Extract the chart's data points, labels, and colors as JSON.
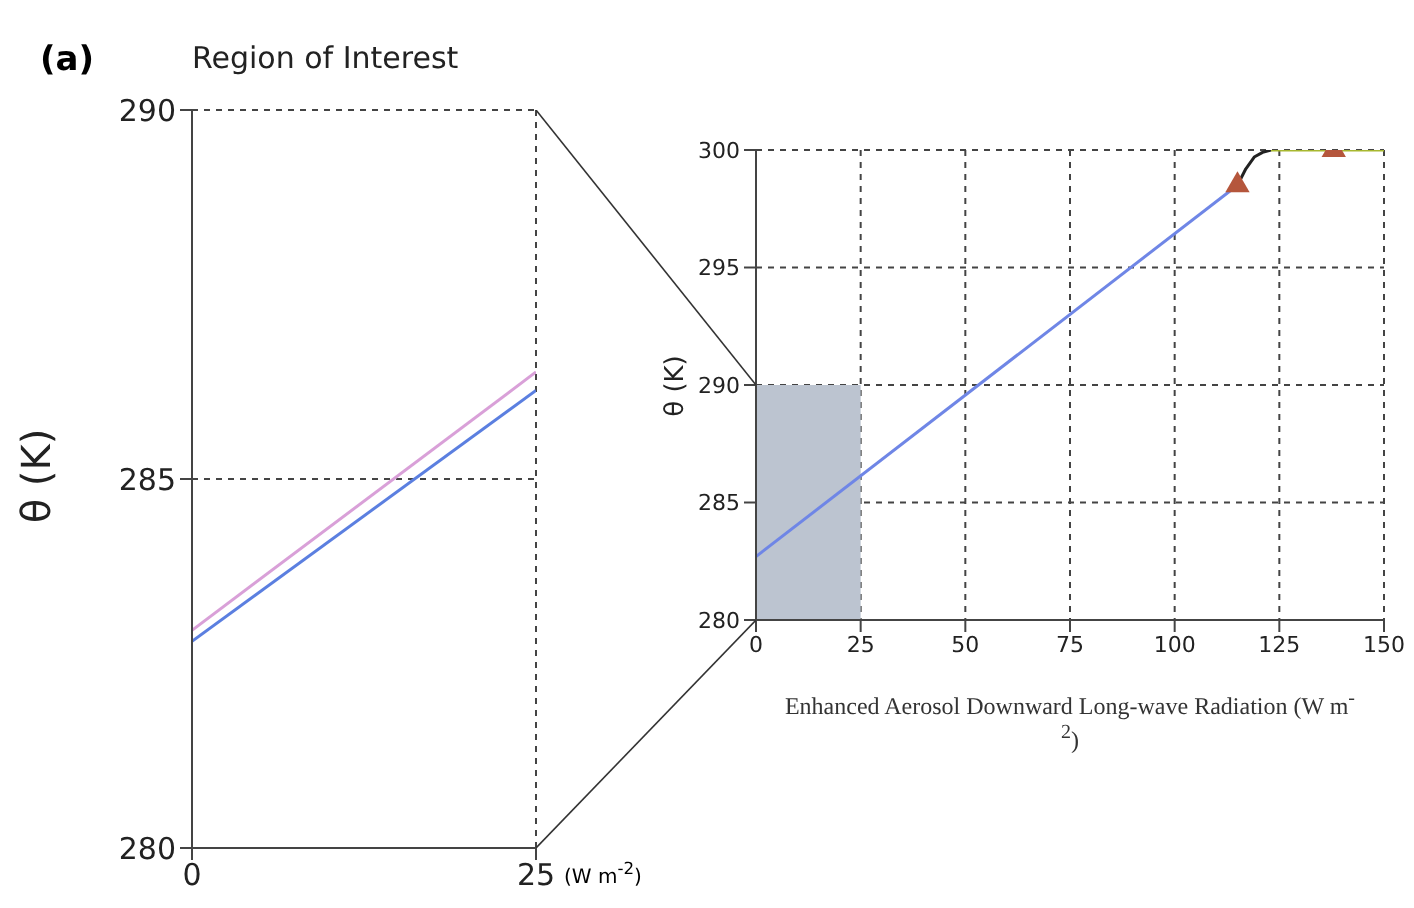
{
  "chart_data": [
    {
      "type": "line",
      "title": "Region of Interest",
      "ylabel": "θ (K)",
      "xlabel": "(W m$^{-2}$)",
      "annotations": [
        "(a)"
      ],
      "xlim": [
        0,
        25
      ],
      "xticks": [
        0,
        25
      ],
      "ylim": [
        280,
        290
      ],
      "yticks": [
        280,
        285,
        290
      ],
      "grid": true,
      "series": [
        {
          "color": "#d9a0d8",
          "x": [
            0,
            25
          ],
          "values": [
            282.95,
            286.45
          ]
        },
        {
          "color": "#5b7fe0",
          "x": [
            0,
            25
          ],
          "values": [
            282.8,
            286.2
          ]
        }
      ]
    },
    {
      "type": "line",
      "ylabel": "θ (K)",
      "xlabel": "Enhanced Aerosol Downward Long-wave Radiation (W m$^{-2}$)",
      "xlim": [
        0,
        150
      ],
      "xticks": [
        0,
        25,
        50,
        75,
        100,
        125,
        150
      ],
      "ylim": [
        280,
        300
      ],
      "yticks": [
        280,
        285,
        290,
        295,
        300
      ],
      "grid": true,
      "bands": [
        {
          "axis": "x",
          "from": 0,
          "to": 25,
          "color": "#bcc4d0"
        }
      ],
      "series": [
        {
          "color": "#6f86e6",
          "x": [
            0,
            115
          ],
          "values": [
            282.7,
            298.5
          ]
        },
        {
          "color": "#222222",
          "x": [
            115,
            117,
            119,
            121,
            123
          ],
          "values": [
            298.5,
            299.2,
            299.7,
            299.9,
            300
          ]
        },
        {
          "color": "#a8b830",
          "x": [
            123,
            150
          ],
          "values": [
            300,
            300
          ]
        },
        {
          "type": "scatter",
          "marker": "triangle",
          "color": "#b5563c",
          "x": [
            115,
            138
          ],
          "values": [
            298.5,
            300
          ]
        }
      ]
    }
  ]
}
